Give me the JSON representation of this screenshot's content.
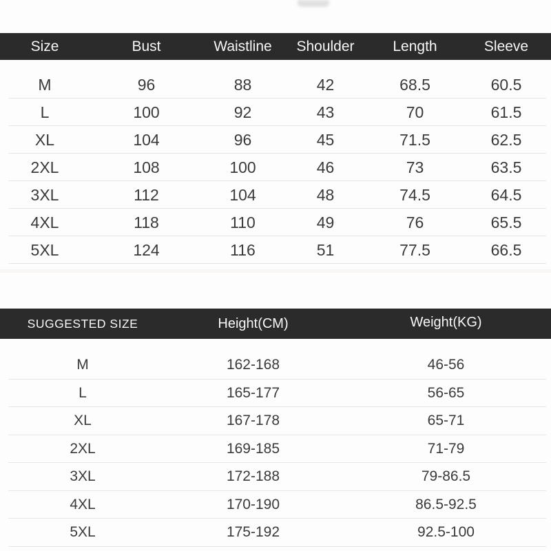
{
  "size_table": {
    "headers": [
      "Size",
      "Bust",
      "Waistline",
      "Shoulder",
      "Length",
      "Sleeve"
    ],
    "rows": [
      {
        "size": "M",
        "bust": "96",
        "waistline": "88",
        "shoulder": "42",
        "length": "68.5",
        "sleeve": "60.5"
      },
      {
        "size": "L",
        "bust": "100",
        "waistline": "92",
        "shoulder": "43",
        "length": "70",
        "sleeve": "61.5"
      },
      {
        "size": "XL",
        "bust": "104",
        "waistline": "96",
        "shoulder": "45",
        "length": "71.5",
        "sleeve": "62.5"
      },
      {
        "size": "2XL",
        "bust": "108",
        "waistline": "100",
        "shoulder": "46",
        "length": "73",
        "sleeve": "63.5"
      },
      {
        "size": "3XL",
        "bust": "112",
        "waistline": "104",
        "shoulder": "48",
        "length": "74.5",
        "sleeve": "64.5"
      },
      {
        "size": "4XL",
        "bust": "118",
        "waistline": "110",
        "shoulder": "49",
        "length": "76",
        "sleeve": "65.5"
      },
      {
        "size": "5XL",
        "bust": "124",
        "waistline": "116",
        "shoulder": "51",
        "length": "77.5",
        "sleeve": "66.5"
      }
    ]
  },
  "suggested_table": {
    "headers": [
      "SUGGESTED SIZE",
      "Height(CM)",
      "Weight(KG)"
    ],
    "rows": [
      {
        "size": "M",
        "height": "162-168",
        "weight": "46-56"
      },
      {
        "size": "L",
        "height": "165-177",
        "weight": "56-65"
      },
      {
        "size": "XL",
        "height": "167-178",
        "weight": "65-71"
      },
      {
        "size": "2XL",
        "height": "169-185",
        "weight": "71-79"
      },
      {
        "size": "3XL",
        "height": "172-188",
        "weight": "79-86.5"
      },
      {
        "size": "4XL",
        "height": "170-190",
        "weight": "86.5-92.5"
      },
      {
        "size": "5XL",
        "height": "175-192",
        "weight": "92.5-100"
      }
    ]
  },
  "colors": {
    "header_bar": "#2b2b2b",
    "header_text": "#f7f7f7",
    "data_text": "#3a3a3a",
    "divider": "#e7e6e6",
    "background": "#fdfdfd"
  }
}
